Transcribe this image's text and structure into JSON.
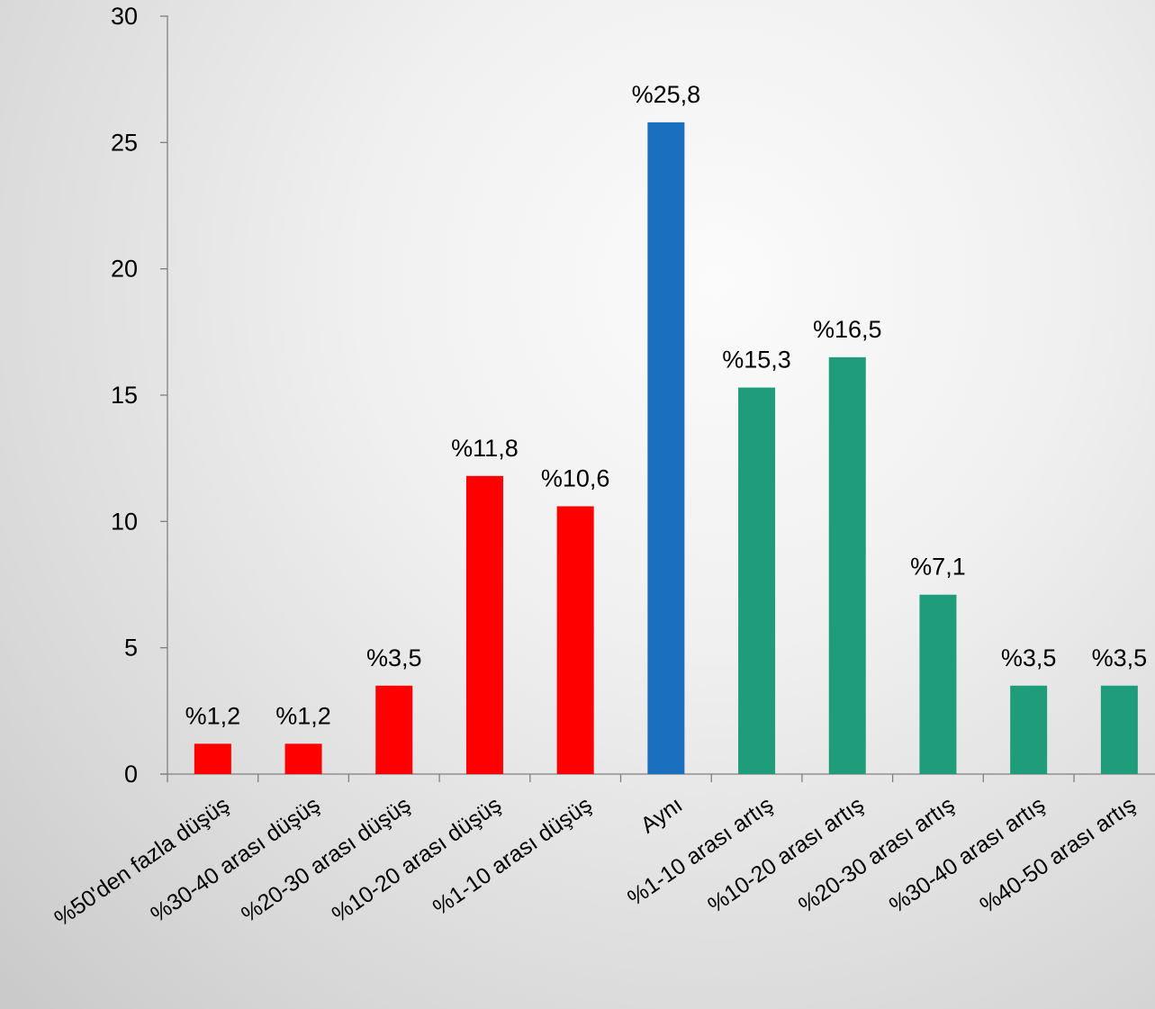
{
  "chart_data": {
    "type": "bar",
    "title": "",
    "xlabel": "",
    "ylabel": "",
    "ylim": [
      0,
      30
    ],
    "yticks": [
      0,
      5,
      10,
      15,
      20,
      25,
      30
    ],
    "grid": false,
    "legend": "none",
    "categories": [
      "%50'den fazla düşüş",
      "%30-40 arası düşüş",
      "%20-30 arası düşüş",
      "%10-20 arası düşüş",
      "%1-10 arası düşüş",
      "Aynı",
      "%1-10 arası artış",
      "%10-20 arası artış",
      "%20-30 arası artış",
      "%30-40 arası artış",
      "%40-50 arası artış"
    ],
    "values": [
      1.2,
      1.2,
      3.5,
      11.8,
      10.6,
      25.8,
      15.3,
      16.5,
      7.1,
      3.5,
      3.5
    ],
    "data_labels": [
      "%1,2",
      "%1,2",
      "%3,5",
      "%11,8",
      "%10,6",
      "%25,8",
      "%15,3",
      "%16,5",
      "%7,1",
      "%3,5",
      "%3,5"
    ],
    "bar_colors": [
      "#ff0000",
      "#ff0000",
      "#ff0000",
      "#ff0000",
      "#ff0000",
      "#1b6fbf",
      "#1f9c7a",
      "#1f9c7a",
      "#1f9c7a",
      "#1f9c7a",
      "#1f9c7a"
    ],
    "axis_color": "#7f7f7f"
  }
}
